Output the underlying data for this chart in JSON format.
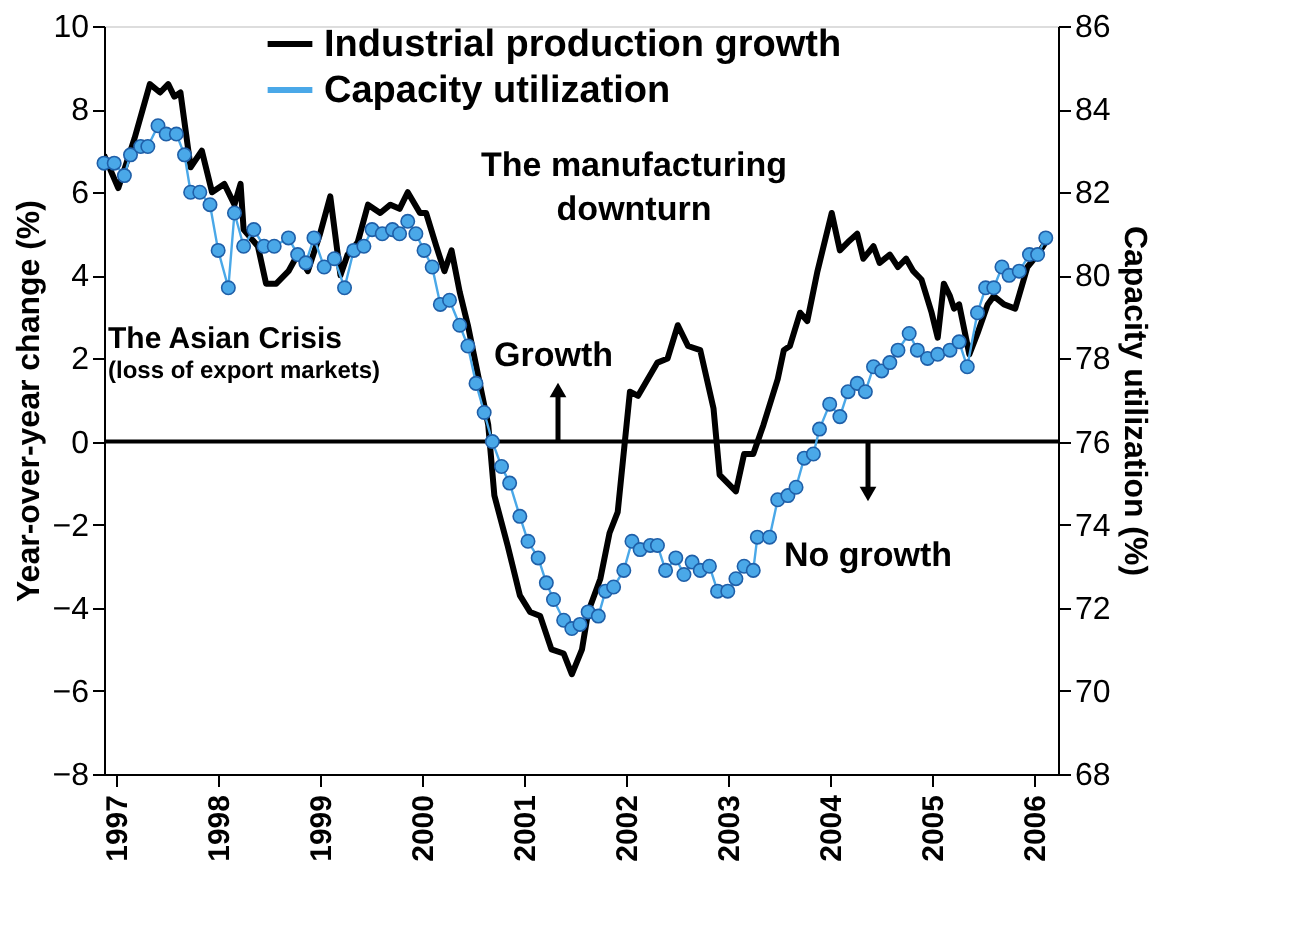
{
  "chart_data": {
    "type": "line",
    "ylabel": "Year-over-year change (%)",
    "y2label": "Capacity utilization (%)",
    "xlim": [
      1996.88,
      2006.24
    ],
    "xticks": [
      1997,
      1998,
      1999,
      2000,
      2001,
      2002,
      2003,
      2004,
      2005,
      2006
    ],
    "ylim": [
      -8,
      10
    ],
    "yticks": [
      -8,
      -6,
      -4,
      -2,
      0,
      2,
      4,
      6,
      8,
      10
    ],
    "y2lim": [
      68,
      86
    ],
    "y2ticks": [
      68,
      70,
      72,
      74,
      76,
      78,
      80,
      82,
      84,
      86
    ],
    "grid": false,
    "legend": "top",
    "line_style": "solid",
    "ref_lines": [
      {
        "axis": "y",
        "value": 0,
        "color": "#000000"
      }
    ],
    "annotations": [
      "The Asian Crisis",
      "(loss of export markets)",
      "The manufacturing",
      "downturn",
      "Growth",
      "No growth"
    ],
    "series": [
      {
        "name": "Industrial production growth",
        "color": "#000000",
        "axis": "y",
        "marker": "none",
        "x": [
          1996.88,
          1997.02,
          1997.18,
          1997.33,
          1997.43,
          1997.51,
          1997.57,
          1997.63,
          1997.73,
          1997.84,
          1997.94,
          1998.06,
          1998.16,
          1998.22,
          1998.25,
          1998.39,
          1998.47,
          1998.57,
          1998.69,
          1998.78,
          1998.88,
          1999.0,
          1999.1,
          1999.2,
          1999.27,
          1999.37,
          1999.47,
          1999.59,
          1999.69,
          1999.78,
          1999.86,
          1999.98,
          2000.04,
          2000.14,
          2000.22,
          2000.29,
          2000.37,
          2000.45,
          2000.55,
          2000.65,
          2000.71,
          2000.84,
          2000.96,
          2001.06,
          2001.16,
          2001.27,
          2001.39,
          2001.47,
          2001.57,
          2001.63,
          2001.75,
          2001.84,
          2001.92,
          2002.04,
          2002.12,
          2002.31,
          2002.41,
          2002.51,
          2002.61,
          2002.73,
          2002.86,
          2002.92,
          2003.08,
          2003.16,
          2003.25,
          2003.35,
          2003.49,
          2003.55,
          2003.61,
          2003.71,
          2003.78,
          2003.88,
          2004.02,
          2004.1,
          2004.18,
          2004.27,
          2004.33,
          2004.43,
          2004.49,
          2004.59,
          2004.67,
          2004.75,
          2004.82,
          2004.9,
          2005.0,
          2005.06,
          2005.12,
          2005.18,
          2005.22,
          2005.27,
          2005.37,
          2005.45,
          2005.55,
          2005.61,
          2005.71,
          2005.82,
          2005.94,
          2006.04,
          2006.12
        ],
        "values": [
          6.9,
          6.1,
          7.3,
          8.6,
          8.4,
          8.6,
          8.3,
          8.4,
          6.6,
          7.0,
          6.0,
          6.2,
          5.7,
          6.2,
          5.1,
          4.7,
          3.8,
          3.8,
          4.1,
          4.5,
          4.1,
          5.0,
          5.9,
          4.0,
          4.5,
          4.8,
          5.7,
          5.5,
          5.7,
          5.6,
          6.0,
          5.5,
          5.5,
          4.7,
          4.1,
          4.6,
          3.6,
          2.8,
          1.6,
          0.4,
          -1.3,
          -2.5,
          -3.7,
          -4.1,
          -4.2,
          -5.0,
          -5.1,
          -5.6,
          -5.0,
          -4.1,
          -3.3,
          -2.2,
          -1.7,
          1.2,
          1.1,
          1.9,
          2.0,
          2.8,
          2.3,
          2.2,
          0.8,
          -0.8,
          -1.2,
          -0.3,
          -0.3,
          0.4,
          1.5,
          2.2,
          2.3,
          3.1,
          2.9,
          4.1,
          5.5,
          4.6,
          4.8,
          5.0,
          4.4,
          4.7,
          4.3,
          4.5,
          4.2,
          4.4,
          4.1,
          3.9,
          3.1,
          2.5,
          3.8,
          3.5,
          3.2,
          3.3,
          2.1,
          2.6,
          3.3,
          3.5,
          3.3,
          3.2,
          4.2,
          4.5,
          4.8
        ]
      },
      {
        "name": "Capacity utilization",
        "color": "#4aa8e8",
        "axis": "y2",
        "marker": "circle",
        "x": [
          1996.88,
          1996.98,
          1997.08,
          1997.14,
          1997.24,
          1997.31,
          1997.41,
          1997.49,
          1997.59,
          1997.67,
          1997.73,
          1997.82,
          1997.92,
          1998.0,
          1998.1,
          1998.16,
          1998.25,
          1998.35,
          1998.45,
          1998.55,
          1998.69,
          1998.78,
          1998.86,
          1998.94,
          1999.04,
          1999.14,
          1999.24,
          1999.33,
          1999.43,
          1999.51,
          1999.61,
          1999.71,
          1999.78,
          1999.86,
          1999.94,
          2000.02,
          2000.1,
          2000.18,
          2000.27,
          2000.37,
          2000.45,
          2000.53,
          2000.61,
          2000.69,
          2000.78,
          2000.86,
          2000.96,
          2001.04,
          2001.14,
          2001.22,
          2001.29,
          2001.39,
          2001.47,
          2001.55,
          2001.63,
          2001.73,
          2001.8,
          2001.88,
          2001.98,
          2002.06,
          2002.14,
          2002.24,
          2002.31,
          2002.39,
          2002.49,
          2002.57,
          2002.65,
          2002.73,
          2002.82,
          2002.9,
          2003.0,
          2003.08,
          2003.16,
          2003.25,
          2003.29,
          2003.41,
          2003.49,
          2003.59,
          2003.67,
          2003.75,
          2003.84,
          2003.9,
          2004.0,
          2004.1,
          2004.18,
          2004.27,
          2004.35,
          2004.43,
          2004.51,
          2004.59,
          2004.67,
          2004.78,
          2004.86,
          2004.96,
          2005.06,
          2005.18,
          2005.27,
          2005.35,
          2005.45,
          2005.53,
          2005.61,
          2005.69,
          2005.76,
          2005.86,
          2005.96,
          2006.04,
          2006.12
        ],
        "values": [
          82.7,
          82.7,
          82.4,
          82.9,
          83.1,
          83.1,
          83.6,
          83.4,
          83.4,
          82.9,
          82.0,
          82.0,
          81.7,
          80.6,
          79.7,
          81.5,
          80.7,
          81.1,
          80.7,
          80.7,
          80.9,
          80.5,
          80.3,
          80.9,
          80.2,
          80.4,
          79.7,
          80.6,
          80.7,
          81.1,
          81.0,
          81.1,
          81.0,
          81.3,
          81.0,
          80.6,
          80.2,
          79.3,
          79.4,
          78.8,
          78.3,
          77.4,
          76.7,
          76.0,
          75.4,
          75.0,
          74.2,
          73.6,
          73.2,
          72.6,
          72.2,
          71.7,
          71.5,
          71.6,
          71.9,
          71.8,
          72.4,
          72.5,
          72.9,
          73.6,
          73.4,
          73.5,
          73.5,
          72.9,
          73.2,
          72.8,
          73.1,
          72.9,
          73.0,
          72.4,
          72.4,
          72.7,
          73.0,
          72.9,
          73.7,
          73.7,
          74.6,
          74.7,
          74.9,
          75.6,
          75.7,
          76.3,
          76.9,
          76.6,
          77.2,
          77.4,
          77.2,
          77.8,
          77.7,
          77.9,
          78.2,
          78.6,
          78.2,
          78.0,
          78.1,
          78.2,
          78.4,
          77.8,
          79.1,
          79.7,
          79.7,
          80.2,
          80.0,
          80.1,
          80.5,
          80.5,
          80.9
        ]
      }
    ]
  }
}
